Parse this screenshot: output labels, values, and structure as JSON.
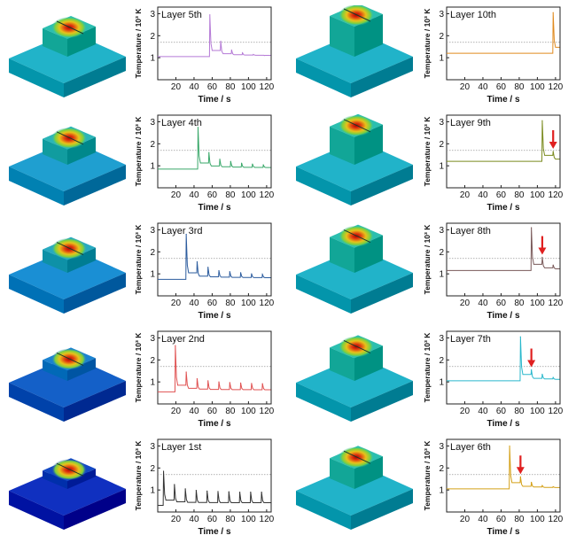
{
  "axes": {
    "xlabel": "Time / s",
    "ylabel": "Temperature / 10³ K",
    "xticks": [
      "20",
      "40",
      "60",
      "80",
      "100",
      "120"
    ],
    "yticks": [
      "1",
      "2",
      "3"
    ],
    "xlim": [
      0,
      125
    ],
    "ylim": [
      0,
      3.3
    ],
    "reference_line_y": 1.7
  },
  "chart_data": [
    {
      "type": "line",
      "title": "Layer 5th",
      "color": "#b57ad6",
      "baseline": 1.05,
      "x_start": 57,
      "peaks": [
        [
          57,
          2.95
        ],
        [
          69,
          1.75
        ],
        [
          81,
          1.35
        ],
        [
          93,
          1.22
        ],
        [
          105,
          1.15
        ],
        [
          117,
          1.1
        ]
      ],
      "arrow_x": null
    },
    {
      "type": "line",
      "title": "Layer 10th",
      "color": "#e08a1e",
      "baseline": 1.2,
      "x_start": 117,
      "peaks": [
        [
          117,
          3.05
        ]
      ],
      "arrow_x": null
    },
    {
      "type": "line",
      "title": "Layer 4th",
      "color": "#3aa86a",
      "baseline": 0.85,
      "x_start": 44,
      "peaks": [
        [
          44,
          2.75
        ],
        [
          56,
          1.6
        ],
        [
          68,
          1.3
        ],
        [
          80,
          1.2
        ],
        [
          92,
          1.12
        ],
        [
          104,
          1.08
        ],
        [
          116,
          1.03
        ]
      ],
      "arrow_x": null
    },
    {
      "type": "line",
      "title": "Layer 9th",
      "color": "#7a8a1e",
      "baseline": 1.2,
      "x_start": 105,
      "peaks": [
        [
          105,
          3.05
        ],
        [
          117,
          1.65
        ]
      ],
      "arrow_x": 117
    },
    {
      "type": "line",
      "title": "Layer 3rd",
      "color": "#2c5c9e",
      "baseline": 0.75,
      "x_start": 31,
      "peaks": [
        [
          31,
          2.8
        ],
        [
          43,
          1.55
        ],
        [
          55,
          1.3
        ],
        [
          67,
          1.15
        ],
        [
          79,
          1.1
        ],
        [
          91,
          1.05
        ],
        [
          103,
          1.0
        ],
        [
          115,
          0.97
        ]
      ],
      "arrow_x": null
    },
    {
      "type": "line",
      "title": "Layer 8th",
      "color": "#7a5a5a",
      "baseline": 1.15,
      "x_start": 93,
      "peaks": [
        [
          93,
          3.1
        ],
        [
          105,
          1.75
        ],
        [
          117,
          1.4
        ]
      ],
      "arrow_x": 105
    },
    {
      "type": "line",
      "title": "Layer 2nd",
      "color": "#e05252",
      "baseline": 0.55,
      "x_start": 19,
      "peaks": [
        [
          19,
          2.65
        ],
        [
          31,
          1.45
        ],
        [
          43,
          1.15
        ],
        [
          55,
          1.05
        ],
        [
          67,
          1.0
        ],
        [
          79,
          0.97
        ],
        [
          91,
          0.95
        ],
        [
          103,
          0.93
        ],
        [
          115,
          0.92
        ]
      ],
      "arrow_x": null
    },
    {
      "type": "line",
      "title": "Layer 7th",
      "color": "#2ab8cc",
      "baseline": 1.05,
      "x_start": 81,
      "peaks": [
        [
          81,
          3.05
        ],
        [
          93,
          1.55
        ],
        [
          105,
          1.35
        ],
        [
          117,
          1.2
        ]
      ],
      "arrow_x": 93
    },
    {
      "type": "line",
      "title": "Layer 1st",
      "color": "#333333",
      "baseline": 0.3,
      "x_start": 6,
      "peaks": [
        [
          6,
          1.85
        ],
        [
          18,
          1.25
        ],
        [
          30,
          1.05
        ],
        [
          42,
          0.98
        ],
        [
          54,
          0.95
        ],
        [
          66,
          0.93
        ],
        [
          78,
          0.92
        ],
        [
          90,
          0.9
        ],
        [
          102,
          0.9
        ],
        [
          114,
          0.9
        ]
      ],
      "arrow_x": null
    },
    {
      "type": "line",
      "title": "Layer 6th",
      "color": "#d4a017",
      "baseline": 1.05,
      "x_start": 69,
      "peaks": [
        [
          69,
          3.0
        ],
        [
          81,
          1.6
        ],
        [
          93,
          1.35
        ],
        [
          105,
          1.2
        ],
        [
          117,
          1.15
        ]
      ],
      "arrow_x": 81
    }
  ],
  "models": [
    {
      "name": "layer-5-model",
      "base": "#21b3c9",
      "plate": "#2bbfb0",
      "stage": 5
    },
    {
      "name": "layer-10-model",
      "base": "#21b3c9",
      "plate": "#2bbfb0",
      "stage": 10
    },
    {
      "name": "layer-4-model",
      "base": "#1f9fd0",
      "plate": "#2ab5b8",
      "stage": 4
    },
    {
      "name": "layer-9-model",
      "base": "#21b3c9",
      "plate": "#2bbfb0",
      "stage": 9
    },
    {
      "name": "layer-3-model",
      "base": "#1a8fd4",
      "plate": "#27aac0",
      "stage": 3
    },
    {
      "name": "layer-8-model",
      "base": "#21b3c9",
      "plate": "#2bbfb0",
      "stage": 8
    },
    {
      "name": "layer-2-model",
      "base": "#1460c8",
      "plate": "#1a82d0",
      "stage": 2
    },
    {
      "name": "layer-7-model",
      "base": "#21b3c9",
      "plate": "#2bbfb0",
      "stage": 7
    },
    {
      "name": "layer-1-model",
      "base": "#1030c0",
      "plate": "#1248c4",
      "stage": 1
    },
    {
      "name": "layer-6-model",
      "base": "#21b3c9",
      "plate": "#2bbfb0",
      "stage": 6
    }
  ]
}
